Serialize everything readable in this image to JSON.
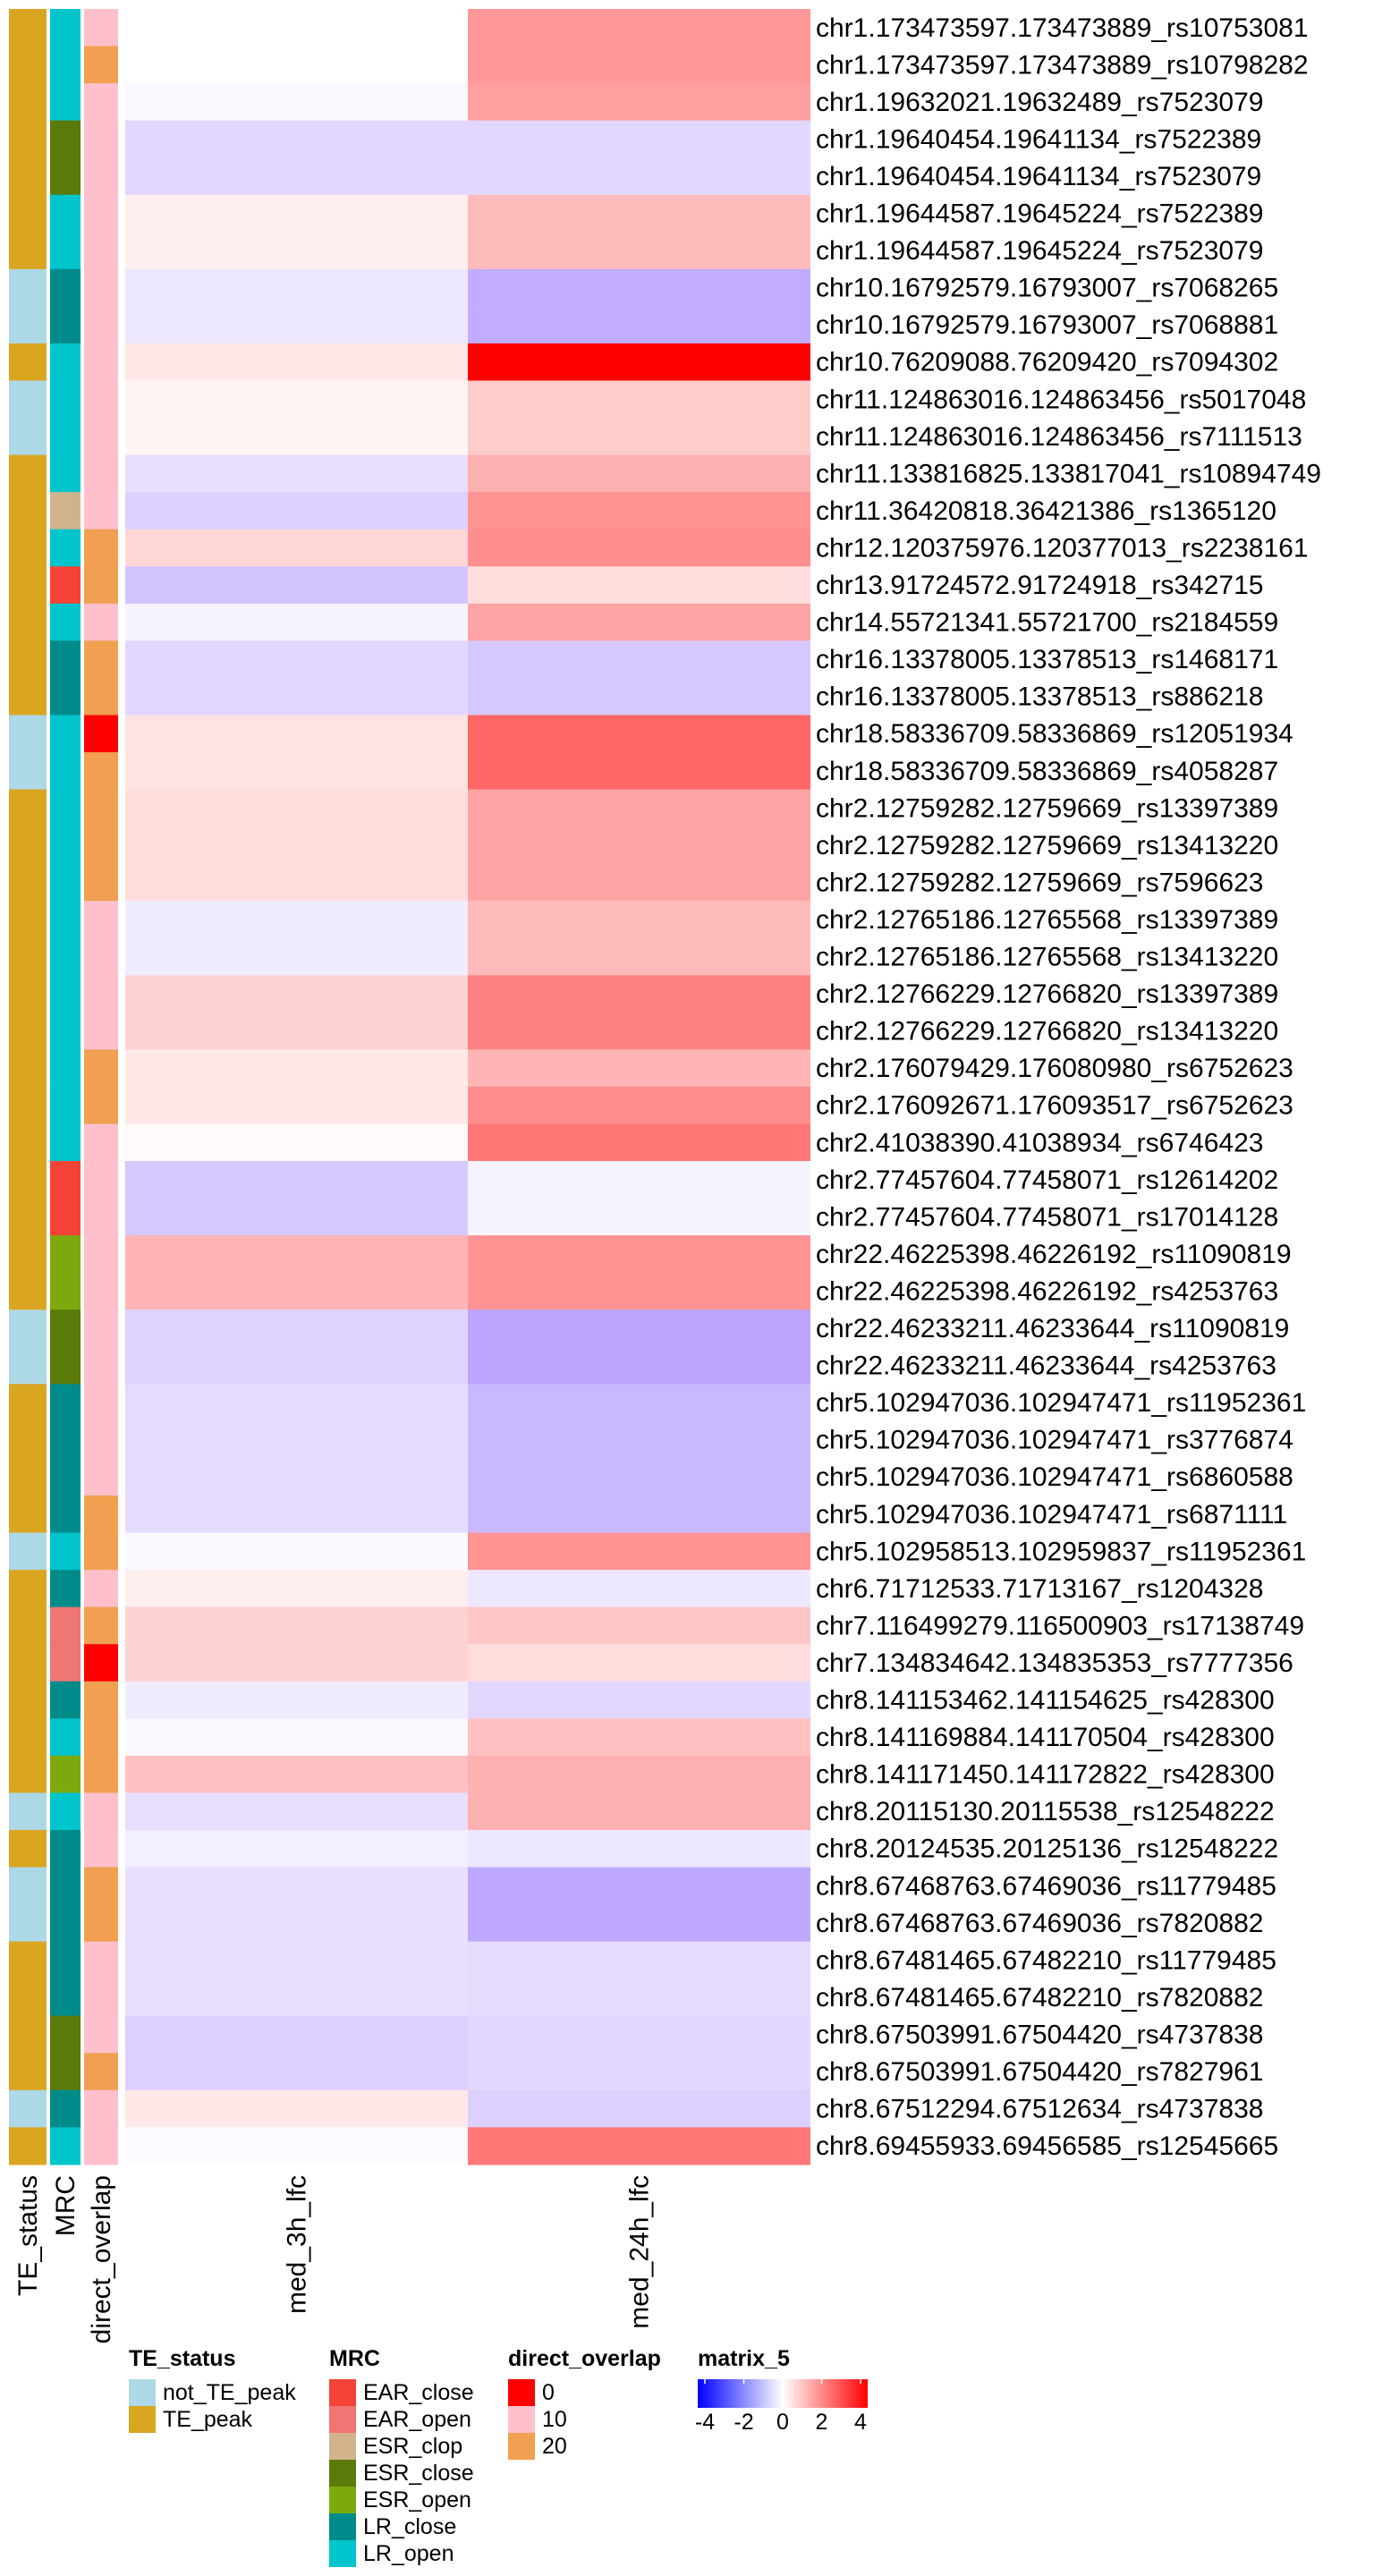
{
  "chart_data": {
    "type": "heatmap",
    "columns": [
      "med_3h_lfc",
      "med_24h_lfc"
    ],
    "annotation_columns": [
      "TE_status",
      "MRC",
      "direct_overlap"
    ],
    "color_scale": {
      "name": "matrix_5",
      "ticks": [
        -4,
        -2,
        0,
        2,
        4
      ],
      "low": "#0000ff",
      "mid": "#ffffff",
      "high": "#ff0000"
    },
    "rows": [
      {
        "label": "chr1.173473597.173473889_rs10753081",
        "TE_status": "TE_peak",
        "MRC": "LR_open",
        "direct_overlap": 10,
        "values": [
          0.0,
          1.8
        ]
      },
      {
        "label": "chr1.173473597.173473889_rs10798282",
        "TE_status": "TE_peak",
        "MRC": "LR_open",
        "direct_overlap": 20,
        "values": [
          0.0,
          1.8
        ]
      },
      {
        "label": "chr1.19632021.19632489_rs7523079",
        "TE_status": "TE_peak",
        "MRC": "LR_open",
        "direct_overlap": 10,
        "values": [
          -0.2,
          1.7
        ]
      },
      {
        "label": "chr1.19640454.19641134_rs7522389",
        "TE_status": "TE_peak",
        "MRC": "ESR_close",
        "direct_overlap": 10,
        "values": [
          -1.0,
          -1.0
        ]
      },
      {
        "label": "chr1.19640454.19641134_rs7523079",
        "TE_status": "TE_peak",
        "MRC": "ESR_close",
        "direct_overlap": 10,
        "values": [
          -1.0,
          -1.0
        ]
      },
      {
        "label": "chr1.19644587.19645224_rs7522389",
        "TE_status": "TE_peak",
        "MRC": "LR_open",
        "direct_overlap": 10,
        "values": [
          0.3,
          1.2
        ]
      },
      {
        "label": "chr1.19644587.19645224_rs7523079",
        "TE_status": "TE_peak",
        "MRC": "LR_open",
        "direct_overlap": 10,
        "values": [
          0.3,
          1.2
        ]
      },
      {
        "label": "chr10.16792579.16793007_rs7068265",
        "TE_status": "not_TE_peak",
        "MRC": "LR_close",
        "direct_overlap": 10,
        "values": [
          -0.6,
          -2.1
        ]
      },
      {
        "label": "chr10.16792579.16793007_rs7068881",
        "TE_status": "not_TE_peak",
        "MRC": "LR_close",
        "direct_overlap": 10,
        "values": [
          -0.6,
          -2.1
        ]
      },
      {
        "label": "chr10.76209088.76209420_rs7094302",
        "TE_status": "TE_peak",
        "MRC": "LR_open",
        "direct_overlap": 10,
        "values": [
          0.4,
          4.5
        ]
      },
      {
        "label": "chr11.124863016.124863456_rs5017048",
        "TE_status": "not_TE_peak",
        "MRC": "LR_open",
        "direct_overlap": 10,
        "values": [
          0.2,
          0.9
        ]
      },
      {
        "label": "chr11.124863016.124863456_rs7111513",
        "TE_status": "not_TE_peak",
        "MRC": "LR_open",
        "direct_overlap": 10,
        "values": [
          0.2,
          0.9
        ]
      },
      {
        "label": "chr11.133816825.133817041_rs10894749",
        "TE_status": "TE_peak",
        "MRC": "LR_open",
        "direct_overlap": 10,
        "values": [
          -0.8,
          1.4
        ]
      },
      {
        "label": "chr11.36420818.36421386_rs1365120",
        "TE_status": "TE_peak",
        "MRC": "ESR_clop",
        "direct_overlap": 10,
        "values": [
          -1.2,
          1.9
        ]
      },
      {
        "label": "chr12.120375976.120377013_rs2238161",
        "TE_status": "TE_peak",
        "MRC": "LR_open",
        "direct_overlap": 20,
        "values": [
          0.7,
          2.0
        ]
      },
      {
        "label": "chr13.91724572.91724918_rs342715",
        "TE_status": "TE_peak",
        "MRC": "EAR_close",
        "direct_overlap": 20,
        "values": [
          -1.5,
          0.6
        ]
      },
      {
        "label": "chr14.55721341.55721700_rs2184559",
        "TE_status": "TE_peak",
        "MRC": "LR_open",
        "direct_overlap": 10,
        "values": [
          -0.3,
          1.6
        ]
      },
      {
        "label": "chr16.13378005.13378513_rs1468171",
        "TE_status": "TE_peak",
        "MRC": "LR_close",
        "direct_overlap": 20,
        "values": [
          -1.0,
          -1.4
        ]
      },
      {
        "label": "chr16.13378005.13378513_rs886218",
        "TE_status": "TE_peak",
        "MRC": "LR_close",
        "direct_overlap": 20,
        "values": [
          -1.0,
          -1.4
        ]
      },
      {
        "label": "chr18.58336709.58336869_rs12051934",
        "TE_status": "not_TE_peak",
        "MRC": "LR_open",
        "direct_overlap": 0,
        "values": [
          0.5,
          2.7
        ]
      },
      {
        "label": "chr18.58336709.58336869_rs4058287",
        "TE_status": "not_TE_peak",
        "MRC": "LR_open",
        "direct_overlap": 20,
        "values": [
          0.5,
          2.7
        ]
      },
      {
        "label": "chr2.12759282.12759669_rs13397389",
        "TE_status": "TE_peak",
        "MRC": "LR_open",
        "direct_overlap": 20,
        "values": [
          0.6,
          1.6
        ]
      },
      {
        "label": "chr2.12759282.12759669_rs13413220",
        "TE_status": "TE_peak",
        "MRC": "LR_open",
        "direct_overlap": 20,
        "values": [
          0.6,
          1.6
        ]
      },
      {
        "label": "chr2.12759282.12759669_rs7596623",
        "TE_status": "TE_peak",
        "MRC": "LR_open",
        "direct_overlap": 20,
        "values": [
          0.6,
          1.6
        ]
      },
      {
        "label": "chr2.12765186.12765568_rs13397389",
        "TE_status": "TE_peak",
        "MRC": "LR_open",
        "direct_overlap": 10,
        "values": [
          -0.5,
          1.2
        ]
      },
      {
        "label": "chr2.12765186.12765568_rs13413220",
        "TE_status": "TE_peak",
        "MRC": "LR_open",
        "direct_overlap": 10,
        "values": [
          -0.5,
          1.2
        ]
      },
      {
        "label": "chr2.12766229.12766820_rs13397389",
        "TE_status": "TE_peak",
        "MRC": "LR_open",
        "direct_overlap": 10,
        "values": [
          0.8,
          2.2
        ]
      },
      {
        "label": "chr2.12766229.12766820_rs13413220",
        "TE_status": "TE_peak",
        "MRC": "LR_open",
        "direct_overlap": 10,
        "values": [
          0.8,
          2.2
        ]
      },
      {
        "label": "chr2.176079429.176080980_rs6752623",
        "TE_status": "TE_peak",
        "MRC": "LR_open",
        "direct_overlap": 20,
        "values": [
          0.4,
          1.3
        ]
      },
      {
        "label": "chr2.176092671.176093517_rs6752623",
        "TE_status": "TE_peak",
        "MRC": "LR_open",
        "direct_overlap": 20,
        "values": [
          0.4,
          2.0
        ]
      },
      {
        "label": "chr2.41038390.41038934_rs6746423",
        "TE_status": "TE_peak",
        "MRC": "LR_open",
        "direct_overlap": 10,
        "values": [
          0.1,
          2.4
        ]
      },
      {
        "label": "chr2.77457604.77458071_rs12614202",
        "TE_status": "TE_peak",
        "MRC": "EAR_close",
        "direct_overlap": 10,
        "values": [
          -1.4,
          -0.3
        ]
      },
      {
        "label": "chr2.77457604.77458071_rs17014128",
        "TE_status": "TE_peak",
        "MRC": "EAR_close",
        "direct_overlap": 10,
        "values": [
          -1.4,
          -0.3
        ]
      },
      {
        "label": "chr22.46225398.46226192_rs11090819",
        "TE_status": "TE_peak",
        "MRC": "ESR_open",
        "direct_overlap": 10,
        "values": [
          1.3,
          1.9
        ]
      },
      {
        "label": "chr22.46225398.46226192_rs4253763",
        "TE_status": "TE_peak",
        "MRC": "ESR_open",
        "direct_overlap": 10,
        "values": [
          1.3,
          1.9
        ]
      },
      {
        "label": "chr22.46233211.46233644_rs11090819",
        "TE_status": "not_TE_peak",
        "MRC": "ESR_close",
        "direct_overlap": 10,
        "values": [
          -1.1,
          -2.3
        ]
      },
      {
        "label": "chr22.46233211.46233644_rs4253763",
        "TE_status": "not_TE_peak",
        "MRC": "ESR_close",
        "direct_overlap": 10,
        "values": [
          -1.1,
          -2.3
        ]
      },
      {
        "label": "chr5.102947036.102947471_rs11952361",
        "TE_status": "TE_peak",
        "MRC": "LR_close",
        "direct_overlap": 10,
        "values": [
          -0.9,
          -1.8
        ]
      },
      {
        "label": "chr5.102947036.102947471_rs3776874",
        "TE_status": "TE_peak",
        "MRC": "LR_close",
        "direct_overlap": 10,
        "values": [
          -0.9,
          -1.8
        ]
      },
      {
        "label": "chr5.102947036.102947471_rs6860588",
        "TE_status": "TE_peak",
        "MRC": "LR_close",
        "direct_overlap": 10,
        "values": [
          -0.9,
          -1.8
        ]
      },
      {
        "label": "chr5.102947036.102947471_rs6871111",
        "TE_status": "TE_peak",
        "MRC": "LR_close",
        "direct_overlap": 20,
        "values": [
          -0.9,
          -1.8
        ]
      },
      {
        "label": "chr5.102958513.102959837_rs11952361",
        "TE_status": "not_TE_peak",
        "MRC": "LR_open",
        "direct_overlap": 20,
        "values": [
          -0.2,
          1.9
        ]
      },
      {
        "label": "chr6.71712533.71713167_rs1204328",
        "TE_status": "TE_peak",
        "MRC": "LR_close",
        "direct_overlap": 10,
        "values": [
          0.3,
          -0.6
        ]
      },
      {
        "label": "chr7.116499279.116500903_rs17138749",
        "TE_status": "TE_peak",
        "MRC": "EAR_open",
        "direct_overlap": 20,
        "values": [
          0.8,
          1.0
        ]
      },
      {
        "label": "chr7.134834642.134835353_rs7777356",
        "TE_status": "TE_peak",
        "MRC": "EAR_open",
        "direct_overlap": 0,
        "values": [
          0.8,
          0.6
        ]
      },
      {
        "label": "chr8.141153462.141154625_rs428300",
        "TE_status": "TE_peak",
        "MRC": "LR_close",
        "direct_overlap": 20,
        "values": [
          -0.5,
          -1.0
        ]
      },
      {
        "label": "chr8.141169884.141170504_rs428300",
        "TE_status": "TE_peak",
        "MRC": "LR_open",
        "direct_overlap": 20,
        "values": [
          -0.2,
          1.1
        ]
      },
      {
        "label": "chr8.141171450.141172822_rs428300",
        "TE_status": "TE_peak",
        "MRC": "ESR_open",
        "direct_overlap": 20,
        "values": [
          1.1,
          1.4
        ]
      },
      {
        "label": "chr8.20115130.20115538_rs12548222",
        "TE_status": "not_TE_peak",
        "MRC": "LR_open",
        "direct_overlap": 10,
        "values": [
          -0.8,
          1.4
        ]
      },
      {
        "label": "chr8.20124535.20125136_rs12548222",
        "TE_status": "TE_peak",
        "MRC": "LR_close",
        "direct_overlap": 10,
        "values": [
          -0.4,
          -0.6
        ]
      },
      {
        "label": "chr8.67468763.67469036_rs11779485",
        "TE_status": "not_TE_peak",
        "MRC": "LR_close",
        "direct_overlap": 20,
        "values": [
          -0.8,
          -2.2
        ]
      },
      {
        "label": "chr8.67468763.67469036_rs7820882",
        "TE_status": "not_TE_peak",
        "MRC": "LR_close",
        "direct_overlap": 20,
        "values": [
          -0.8,
          -2.2
        ]
      },
      {
        "label": "chr8.67481465.67482210_rs11779485",
        "TE_status": "TE_peak",
        "MRC": "LR_close",
        "direct_overlap": 10,
        "values": [
          -0.8,
          -0.9
        ]
      },
      {
        "label": "chr8.67481465.67482210_rs7820882",
        "TE_status": "TE_peak",
        "MRC": "LR_close",
        "direct_overlap": 10,
        "values": [
          -0.8,
          -0.9
        ]
      },
      {
        "label": "chr8.67503991.67504420_rs4737838",
        "TE_status": "TE_peak",
        "MRC": "ESR_close",
        "direct_overlap": 10,
        "values": [
          -1.2,
          -1.0
        ]
      },
      {
        "label": "chr8.67503991.67504420_rs7827961",
        "TE_status": "TE_peak",
        "MRC": "ESR_close",
        "direct_overlap": 20,
        "values": [
          -1.2,
          -1.0
        ]
      },
      {
        "label": "chr8.67512294.67512634_rs4737838",
        "TE_status": "not_TE_peak",
        "MRC": "LR_close",
        "direct_overlap": 10,
        "values": [
          0.4,
          -1.2
        ]
      },
      {
        "label": "chr8.69455933.69456585_rs12545665",
        "TE_status": "TE_peak",
        "MRC": "LR_open",
        "direct_overlap": 10,
        "values": [
          -0.1,
          2.4
        ]
      }
    ]
  },
  "legends": {
    "TE_status": {
      "title": "TE_status",
      "items": [
        {
          "label": "not_TE_peak",
          "color": "#add8e6"
        },
        {
          "label": "TE_peak",
          "color": "#daa520"
        }
      ]
    },
    "MRC": {
      "title": "MRC",
      "items": [
        {
          "label": "EAR_close",
          "color": "#f44336"
        },
        {
          "label": "EAR_open",
          "color": "#f07575"
        },
        {
          "label": "ESR_clop",
          "color": "#d2b48c"
        },
        {
          "label": "ESR_close",
          "color": "#5a7a0a"
        },
        {
          "label": "ESR_open",
          "color": "#7caa0e"
        },
        {
          "label": "LR_close",
          "color": "#008b8b"
        },
        {
          "label": "LR_open",
          "color": "#00c5cd"
        }
      ]
    },
    "direct_overlap": {
      "title": "direct_overlap",
      "items": [
        {
          "label": "0",
          "color": "#ff0000"
        },
        {
          "label": "10",
          "color": "#ffc0cb"
        },
        {
          "label": "20",
          "color": "#f0a050"
        }
      ]
    },
    "matrix": {
      "title": "matrix_5",
      "ticks": [
        "-4",
        "-2",
        "0",
        "2",
        "4"
      ]
    }
  }
}
